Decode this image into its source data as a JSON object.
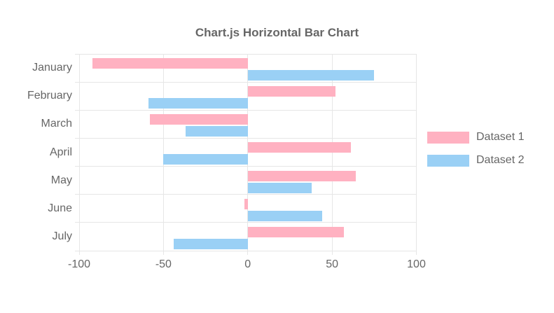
{
  "title": "Chart.js Horizontal Bar Chart",
  "chart_data": {
    "type": "bar",
    "orientation": "horizontal",
    "title": "Chart.js Horizontal Bar Chart",
    "categories": [
      "January",
      "February",
      "March",
      "April",
      "May",
      "June",
      "July"
    ],
    "series": [
      {
        "name": "Dataset 1",
        "color": "#ffb1c1",
        "values": [
          -92,
          52,
          -58,
          61,
          64,
          -2,
          57
        ]
      },
      {
        "name": "Dataset 2",
        "color": "#9ad0f5",
        "values": [
          75,
          -59,
          -37,
          -50,
          38,
          44,
          -44
        ]
      }
    ],
    "xlim": [
      -100,
      100
    ],
    "x_ticks": [
      -100,
      -50,
      0,
      50,
      100
    ],
    "x_tick_labels": [
      "-100",
      "-50",
      "0",
      "50",
      "100"
    ],
    "grid": true,
    "legend_position": "right",
    "text_color": "#666666",
    "grid_color": "#e6e6e6",
    "background_color": "#ffffff"
  }
}
